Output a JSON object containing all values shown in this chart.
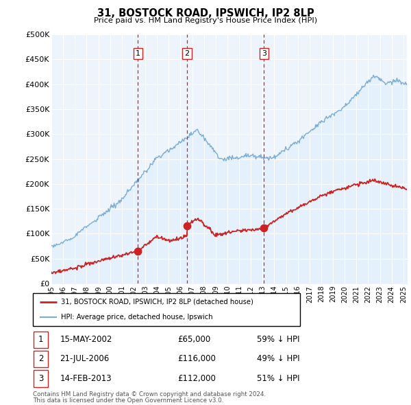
{
  "title": "31, BOSTOCK ROAD, IPSWICH, IP2 8LP",
  "subtitle": "Price paid vs. HM Land Registry's House Price Index (HPI)",
  "ylabel_ticks": [
    "£0",
    "£50K",
    "£100K",
    "£150K",
    "£200K",
    "£250K",
    "£300K",
    "£350K",
    "£400K",
    "£450K",
    "£500K"
  ],
  "ytick_values": [
    0,
    50000,
    100000,
    150000,
    200000,
    250000,
    300000,
    350000,
    400000,
    450000,
    500000
  ],
  "hpi_color": "#7aadd4",
  "hpi_fill_color": "#ddeeff",
  "price_color": "#cc2222",
  "vline_color": "#cc2222",
  "background_color": "#ffffff",
  "grid_color": "#cccccc",
  "transactions": [
    {
      "label": "1",
      "date": "15-MAY-2002",
      "price": 65000,
      "price_str": "£65,000",
      "note": "59% ↓ HPI",
      "x_year": 2002.37
    },
    {
      "label": "2",
      "date": "21-JUL-2006",
      "price": 116000,
      "price_str": "£116,000",
      "note": "49% ↓ HPI",
      "x_year": 2006.55
    },
    {
      "label": "3",
      "date": "14-FEB-2013",
      "price": 112000,
      "price_str": "£112,000",
      "note": "51% ↓ HPI",
      "x_year": 2013.12
    }
  ],
  "legend_entries": [
    "31, BOSTOCK ROAD, IPSWICH, IP2 8LP (detached house)",
    "HPI: Average price, detached house, Ipswich"
  ],
  "footnote_line1": "Contains HM Land Registry data © Crown copyright and database right 2024.",
  "footnote_line2": "This data is licensed under the Open Government Licence v3.0.",
  "xmin": 1995,
  "xmax": 2025.3,
  "ymin": 0,
  "ymax": 500000
}
